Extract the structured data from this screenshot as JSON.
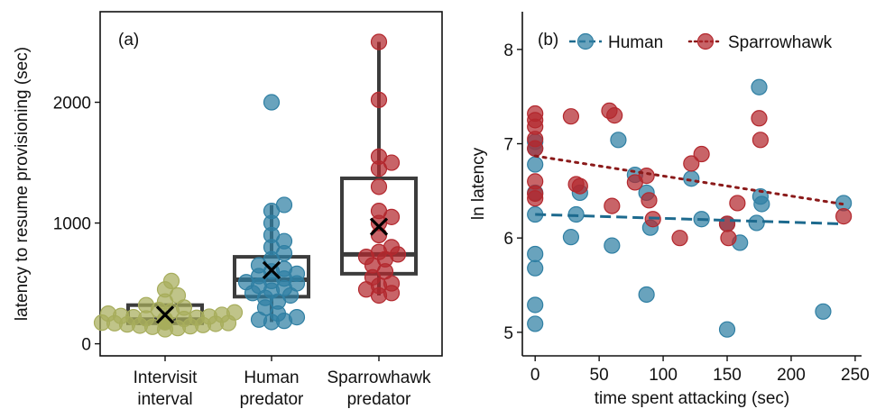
{
  "colors": {
    "intervisit": "#a7ad5c",
    "human": "#2f7fa3",
    "sparrowhawk": "#b3282e",
    "box": "#3c3c3c",
    "human_line": "#1d6a8e",
    "sparrow_line": "#8b1a1a"
  },
  "chart_data": [
    {
      "type": "box",
      "panel_label": "(a)",
      "ylabel": "latency to resume provisioning (sec)",
      "xlabel": "",
      "ylim": [
        -100,
        2750
      ],
      "yticks": [
        0,
        1000,
        2000
      ],
      "ytick_labels": [
        "0",
        "1000",
        "2000"
      ],
      "categories": [
        {
          "line1": "Intervisit",
          "line2": "interval"
        },
        {
          "line1": "Human",
          "line2": "predator"
        },
        {
          "line1": "Sparrowhawk",
          "line2": "predator"
        }
      ],
      "mean_marker": "X",
      "series": [
        {
          "color_key": "intervisit",
          "box": {
            "q1": 170,
            "median": 200,
            "q3": 320,
            "whisker_low": 120,
            "whisker_high": 320
          },
          "mean": 240,
          "points": [
            120,
            130,
            140,
            145,
            150,
            155,
            160,
            165,
            170,
            172,
            175,
            178,
            180,
            182,
            185,
            188,
            190,
            192,
            195,
            198,
            200,
            202,
            205,
            210,
            215,
            220,
            225,
            230,
            240,
            250,
            260,
            270,
            280,
            300,
            320,
            350,
            400,
            450,
            520
          ]
        },
        {
          "color_key": "human",
          "box": {
            "q1": 390,
            "median": 530,
            "q3": 720,
            "whisker_low": 180,
            "whisker_high": 1150
          },
          "mean": 610,
          "points": [
            180,
            190,
            200,
            220,
            250,
            300,
            350,
            380,
            400,
            420,
            440,
            460,
            480,
            500,
            510,
            520,
            540,
            560,
            580,
            600,
            620,
            650,
            700,
            750,
            800,
            850,
            900,
            1000,
            1100,
            1150,
            2000
          ]
        },
        {
          "color_key": "sparrowhawk",
          "box": {
            "q1": 580,
            "median": 740,
            "q3": 1370,
            "whisker_low": 400,
            "whisker_high": 2500
          },
          "mean": 970,
          "points": [
            400,
            420,
            450,
            480,
            500,
            550,
            600,
            650,
            700,
            720,
            740,
            760,
            800,
            900,
            1000,
            1050,
            1100,
            1300,
            1450,
            1500,
            1550,
            2020,
            2500
          ]
        }
      ]
    },
    {
      "type": "scatter",
      "panel_label": "(b)",
      "xlabel": "time spent attacking (sec)",
      "ylabel": "ln latency",
      "xlim": [
        -10,
        255
      ],
      "ylim": [
        4.75,
        8.4
      ],
      "xticks": [
        0,
        50,
        100,
        150,
        200,
        250
      ],
      "xtick_labels": [
        "0",
        "50",
        "100",
        "150",
        "200",
        "250"
      ],
      "yticks": [
        5,
        6,
        7,
        8
      ],
      "ytick_labels": [
        "5",
        "6",
        "7",
        "8"
      ],
      "legend": {
        "position": "top"
      },
      "series": [
        {
          "name": "Human",
          "color_key": "human",
          "line_key": "human_line",
          "line_style": "dashed",
          "trend": [
            [
              0,
              6.25
            ],
            [
              240,
              6.15
            ]
          ],
          "points": [
            [
              0,
              7.02
            ],
            [
              0,
              6.95
            ],
            [
              0,
              6.78
            ],
            [
              0,
              6.48
            ],
            [
              0,
              6.25
            ],
            [
              0,
              5.83
            ],
            [
              0,
              5.68
            ],
            [
              0,
              5.29
            ],
            [
              0,
              5.09
            ],
            [
              28,
              6.01
            ],
            [
              32,
              6.25
            ],
            [
              35,
              6.48
            ],
            [
              60,
              5.92
            ],
            [
              65,
              7.04
            ],
            [
              78,
              6.67
            ],
            [
              87,
              6.48
            ],
            [
              87,
              5.4
            ],
            [
              90,
              6.11
            ],
            [
              122,
              6.63
            ],
            [
              130,
              6.2
            ],
            [
              150,
              6.15
            ],
            [
              150,
              5.03
            ],
            [
              160,
              5.95
            ],
            [
              173,
              6.16
            ],
            [
              175,
              7.6
            ],
            [
              176,
              6.44
            ],
            [
              177,
              6.36
            ],
            [
              225,
              5.22
            ],
            [
              241,
              6.37
            ]
          ]
        },
        {
          "name": "Sparrowhawk",
          "color_key": "sparrowhawk",
          "line_key": "sparrow_line",
          "line_style": "dotted",
          "trend": [
            [
              0,
              6.87
            ],
            [
              240,
              6.36
            ]
          ],
          "points": [
            [
              0,
              7.32
            ],
            [
              0,
              7.25
            ],
            [
              0,
              7.18
            ],
            [
              0,
              7.05
            ],
            [
              0,
              6.95
            ],
            [
              0,
              6.6
            ],
            [
              0,
              6.47
            ],
            [
              0,
              6.42
            ],
            [
              28,
              7.29
            ],
            [
              32,
              6.57
            ],
            [
              35,
              6.55
            ],
            [
              58,
              7.35
            ],
            [
              62,
              7.3
            ],
            [
              60,
              6.34
            ],
            [
              78,
              6.59
            ],
            [
              87,
              6.66
            ],
            [
              89,
              6.4
            ],
            [
              92,
              6.2
            ],
            [
              113,
              6.0
            ],
            [
              122,
              6.79
            ],
            [
              130,
              6.89
            ],
            [
              150,
              6.15
            ],
            [
              151,
              6.0
            ],
            [
              158,
              6.37
            ],
            [
              175,
              7.27
            ],
            [
              176,
              7.04
            ],
            [
              241,
              6.23
            ]
          ]
        }
      ]
    }
  ]
}
